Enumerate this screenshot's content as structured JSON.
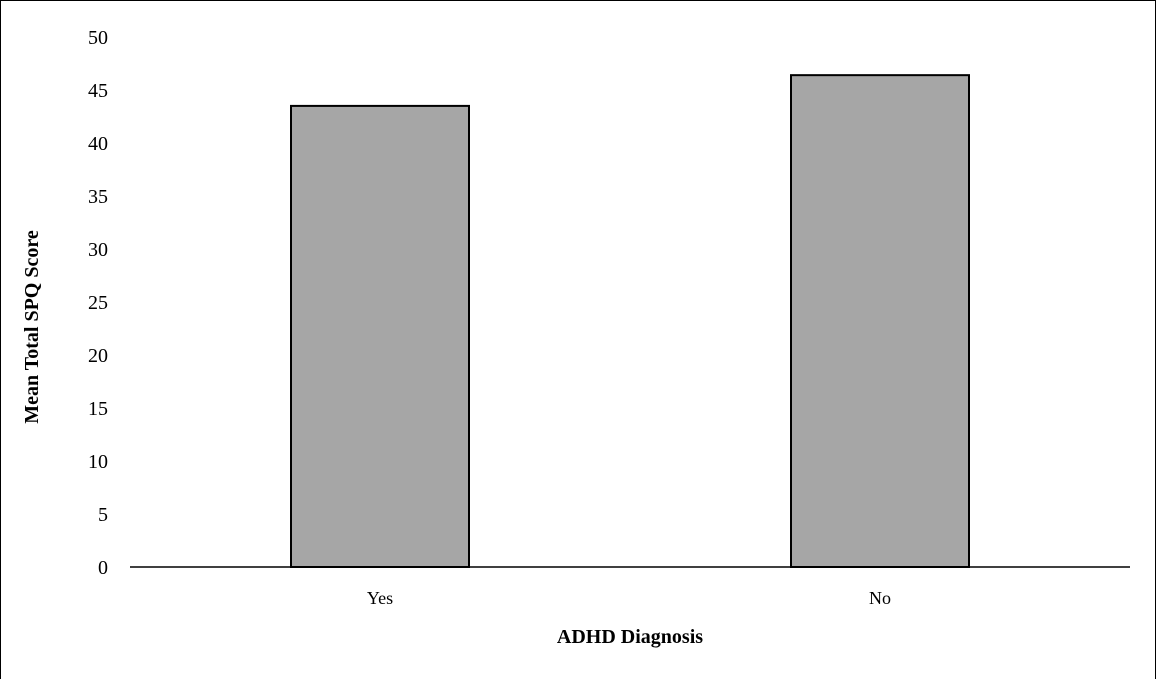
{
  "chart_data": {
    "type": "bar",
    "categories": [
      "Yes",
      "No"
    ],
    "values": [
      43.5,
      46.4
    ],
    "xlabel": "ADHD Diagnosis",
    "ylabel": "Mean Total SPQ Score",
    "ylim": [
      0,
      50
    ],
    "yticks": [
      "0",
      "5",
      "10",
      "15",
      "20",
      "25",
      "30",
      "35",
      "40",
      "45",
      "50"
    ],
    "grid": false,
    "legend": "none",
    "colors": {
      "bar_fill": "#a6a6a6",
      "bar_stroke": "#000000"
    }
  }
}
